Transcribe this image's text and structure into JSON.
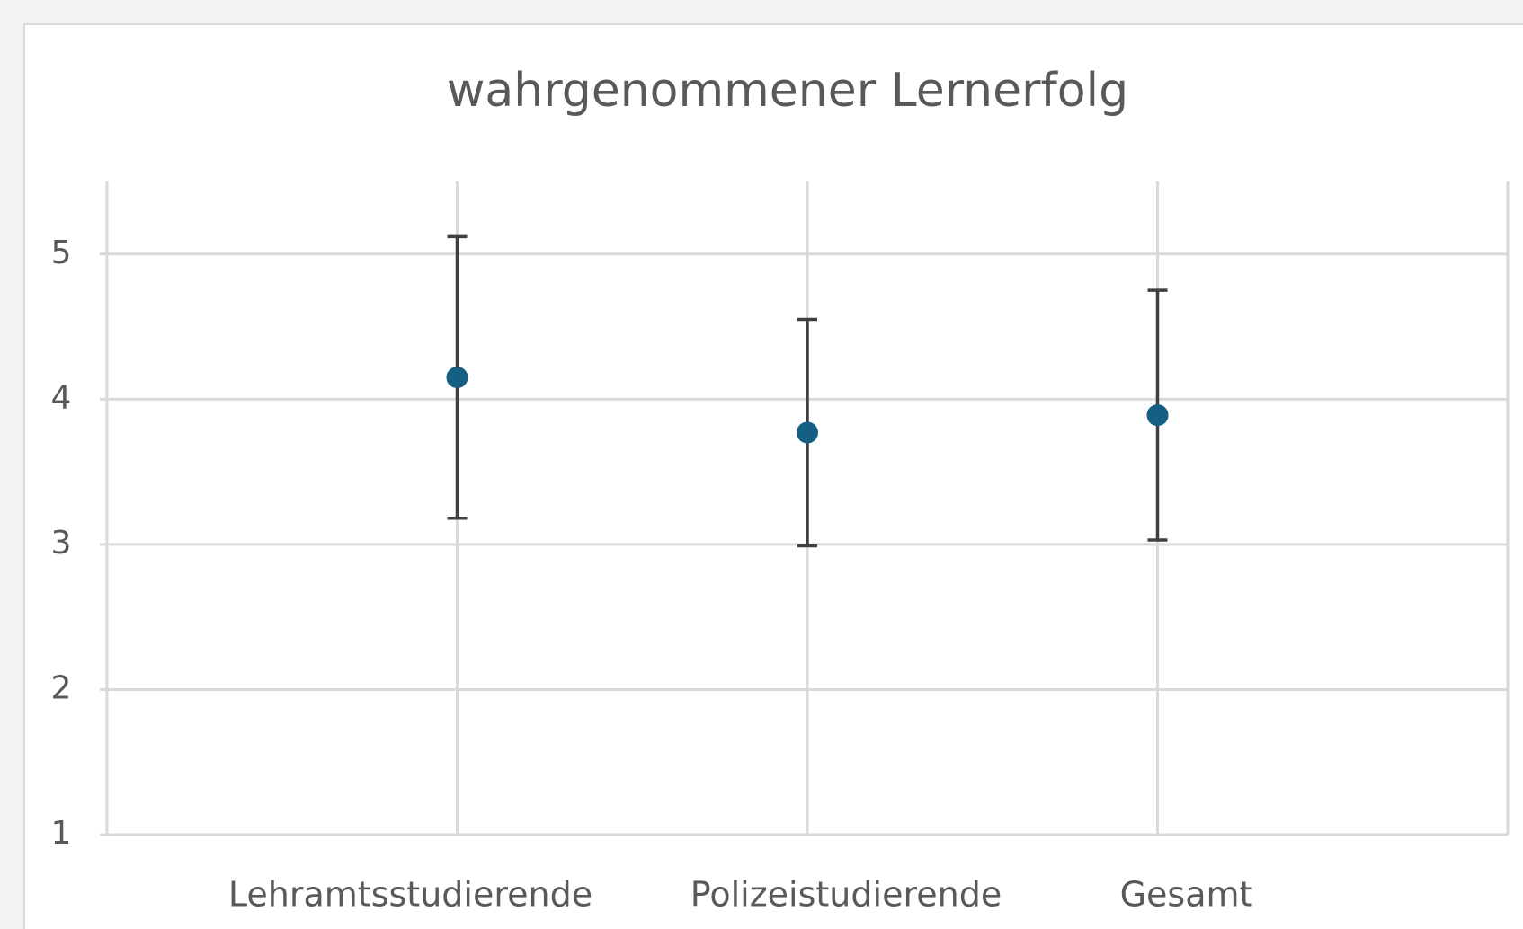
{
  "chart_data": {
    "type": "scatter",
    "title": "wahrgenommener Lernerfolg",
    "categories": [
      "Lehramtsstudierende",
      "Polizeistudierende",
      "Gesamt"
    ],
    "x": [
      1,
      2,
      3
    ],
    "values": [
      4.15,
      3.77,
      3.89
    ],
    "errors": [
      0.97,
      0.78,
      0.86
    ],
    "color": "#155f82",
    "error_color": "#404040",
    "xlim": [
      0,
      4
    ],
    "xticks": [
      1,
      2,
      3
    ],
    "ylim": [
      1,
      5.5
    ],
    "yticks": [
      1,
      2,
      3,
      4,
      5
    ],
    "grid": true
  }
}
